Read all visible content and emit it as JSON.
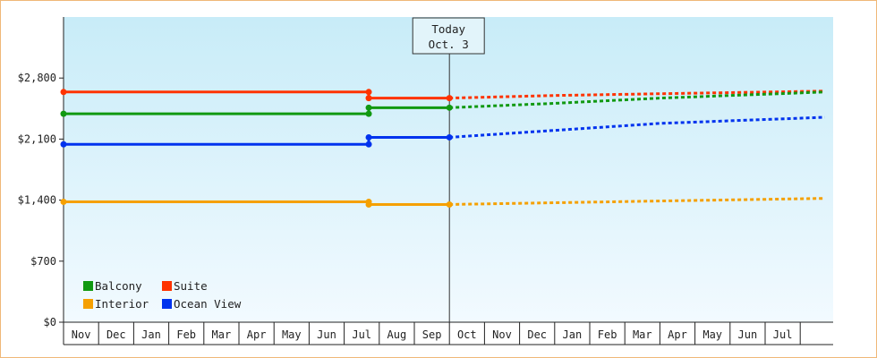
{
  "chart_data": {
    "type": "line",
    "ylim": [
      0,
      3500
    ],
    "y_ticks": [
      0,
      700,
      1400,
      2100,
      2800
    ],
    "y_tick_labels": [
      "$0",
      "$700",
      "$1,400",
      "$2,100",
      "$2,800"
    ],
    "months": [
      "Nov",
      "Dec",
      "Jan",
      "Feb",
      "Mar",
      "Apr",
      "May",
      "Jun",
      "Jul",
      "Aug",
      "Sep",
      "Oct",
      "Nov",
      "Dec",
      "Jan",
      "Feb",
      "Mar",
      "Apr",
      "May",
      "Jun",
      "Jul"
    ],
    "today_marker": {
      "line1": "Today",
      "line2": "Oct. 3",
      "month_position": 11.0
    },
    "legend": [
      {
        "name": "Balcony",
        "color": "#119911"
      },
      {
        "name": "Suite",
        "color": "#ff3300"
      },
      {
        "name": "Interior",
        "color": "#f5a000"
      },
      {
        "name": "Ocean View",
        "color": "#0033ee"
      }
    ],
    "series": [
      {
        "name": "Suite",
        "color": "#ff3300",
        "historical": [
          [
            0,
            2640
          ],
          [
            8.7,
            2640
          ],
          [
            8.7,
            2570
          ],
          [
            11.0,
            2570
          ]
        ],
        "forecast": [
          [
            11.0,
            2570
          ],
          [
            14.0,
            2600
          ],
          [
            17.0,
            2620
          ],
          [
            21.7,
            2650
          ]
        ]
      },
      {
        "name": "Balcony",
        "color": "#119911",
        "historical": [
          [
            0,
            2390
          ],
          [
            8.7,
            2390
          ],
          [
            8.7,
            2460
          ],
          [
            11.0,
            2460
          ]
        ],
        "forecast": [
          [
            11.0,
            2460
          ],
          [
            14.0,
            2510
          ],
          [
            17.0,
            2570
          ],
          [
            21.7,
            2640
          ]
        ]
      },
      {
        "name": "Ocean View",
        "color": "#0033ee",
        "historical": [
          [
            0,
            2040
          ],
          [
            8.7,
            2040
          ],
          [
            8.7,
            2120
          ],
          [
            11.0,
            2120
          ]
        ],
        "forecast": [
          [
            11.0,
            2120
          ],
          [
            14.0,
            2200
          ],
          [
            17.0,
            2280
          ],
          [
            21.7,
            2350
          ]
        ]
      },
      {
        "name": "Interior",
        "color": "#f5a000",
        "historical": [
          [
            0,
            1380
          ],
          [
            8.7,
            1380
          ],
          [
            8.7,
            1350
          ],
          [
            11.0,
            1350
          ]
        ],
        "forecast": [
          [
            11.0,
            1350
          ],
          [
            14.0,
            1370
          ],
          [
            17.0,
            1390
          ],
          [
            21.7,
            1420
          ]
        ]
      }
    ]
  }
}
